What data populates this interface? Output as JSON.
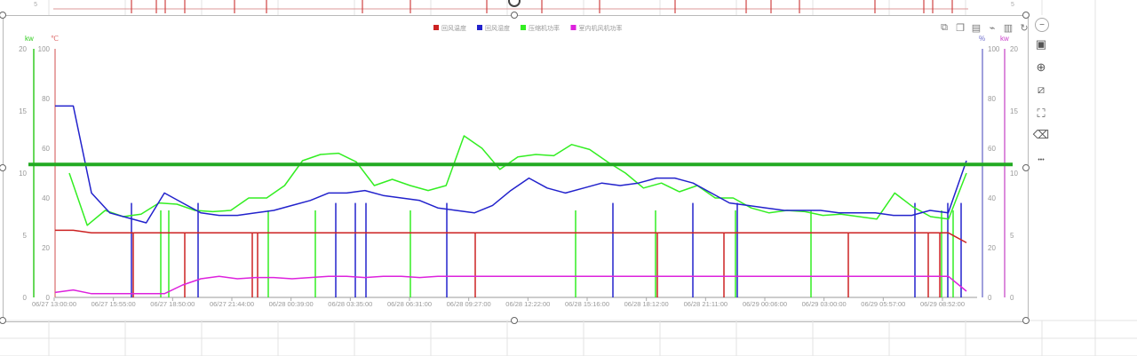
{
  "toolbar": {
    "right_icons": [
      "minus-icon",
      "chart-icon",
      "zoom-in-icon",
      "crop-icon",
      "fullscreen-icon",
      "eraser-icon",
      "more-icon"
    ],
    "more_label": "•••",
    "minus_label": "−",
    "chart_icons": [
      "copy-icon",
      "copy-alt-icon",
      "document-icon",
      "line-chart-icon",
      "bar-chart-icon",
      "refresh-icon"
    ]
  },
  "chart_data": {
    "type": "line",
    "legend_position": "top-center",
    "grid": false,
    "series": [
      {
        "name": "回风温度",
        "color": "#cc2222",
        "axis": "celsius"
      },
      {
        "name": "回风湿度",
        "color": "#2222cc",
        "axis": "percent"
      },
      {
        "name": "压缩机功率",
        "color": "#33ee22",
        "axis": "kw_left"
      },
      {
        "name": "室内机风机功率",
        "color": "#dd22dd",
        "axis": "kw_right"
      }
    ],
    "axes": {
      "kw_left": {
        "unit": "kw",
        "ticks": [
          0,
          5,
          10,
          15,
          20
        ],
        "range": [
          0,
          20
        ],
        "color": "#33cc22"
      },
      "celsius": {
        "unit": "℃",
        "ticks": [
          0,
          20,
          40,
          60,
          80,
          100
        ],
        "range": [
          0,
          100
        ],
        "color": "#dd6666"
      },
      "percent": {
        "unit": "%",
        "ticks": [
          0,
          20,
          40,
          60,
          80,
          100
        ],
        "range": [
          0,
          100
        ],
        "color": "#7070cc"
      },
      "kw_right": {
        "unit": "kw",
        "ticks": [
          0,
          5,
          10,
          15,
          20
        ],
        "range": [
          0,
          20
        ],
        "color": "#cc44cc"
      }
    },
    "x_tick_labels": [
      "06/27 13:00:00",
      "06/27 15:55:00",
      "06/27 18:50:00",
      "06/27 21:44:00",
      "06/28 00:39:00",
      "06/28 03:35:00",
      "06/28 06:31:00",
      "06/28 09:27:00",
      "06/28 12:22:00",
      "06/28 15:16:00",
      "06/28 18:12:00",
      "06/28 21:11:00",
      "06/29 00:06:00",
      "06/29 03:00:00",
      "06/29 05:57:00",
      "06/29 08:52:00"
    ],
    "reference_line": {
      "axis": "kw_left",
      "value": 10.7,
      "color": "#22aa22"
    },
    "return_temp_c": [
      27,
      27,
      26,
      26,
      26,
      26,
      26,
      26,
      26,
      26,
      26,
      26,
      26,
      26,
      26,
      26,
      26,
      26,
      26,
      26,
      26,
      26,
      26,
      26,
      26,
      26,
      26,
      26,
      26,
      26,
      26,
      26,
      26,
      26,
      26,
      26,
      26,
      26,
      26,
      26,
      26,
      26,
      26,
      26,
      26,
      26,
      26,
      26,
      26,
      26,
      22
    ],
    "return_humidity_pct": [
      77,
      77,
      42,
      34,
      32,
      30,
      42,
      38,
      34,
      33,
      33,
      34,
      35,
      37,
      39,
      42,
      42,
      43,
      41,
      40,
      39,
      36,
      35,
      34,
      37,
      43,
      48,
      44,
      42,
      44,
      46,
      45,
      46,
      48,
      48,
      46,
      42,
      38,
      37,
      36,
      35,
      35,
      35,
      34,
      34,
      34,
      33,
      33,
      35,
      34,
      55
    ],
    "compressor_kw": [
      10,
      5.8,
      7,
      6.5,
      6.7,
      7.6,
      7.5,
      7,
      6.9,
      7,
      8,
      8,
      9,
      11,
      11.5,
      11.6,
      10.9,
      9,
      9.5,
      9,
      8.6,
      9,
      13,
      12,
      10.3,
      11.3,
      11.5,
      11.4,
      12.3,
      11.9,
      10.9,
      10,
      8.8,
      9.2,
      8.5,
      9,
      8,
      8,
      7.2,
      6.8,
      7,
      6.9,
      6.6,
      6.7,
      6.5,
      6.3,
      8.4,
      7.3,
      6.5,
      6.3,
      10
    ],
    "fan_kw": [
      0.4,
      0.6,
      0.3,
      0.3,
      0.3,
      0.3,
      0.3,
      1,
      1.5,
      1.7,
      1.5,
      1.6,
      1.6,
      1.5,
      1.6,
      1.7,
      1.7,
      1.6,
      1.7,
      1.7,
      1.6,
      1.7,
      1.7,
      1.7,
      1.7,
      1.7,
      1.7,
      1.7,
      1.7,
      1.7,
      1.7,
      1.7,
      1.7,
      1.7,
      1.7,
      1.7,
      1.7,
      1.7,
      1.7,
      1.7,
      1.7,
      1.7,
      1.7,
      1.7,
      1.7,
      1.7,
      1.7,
      1.7,
      1.7,
      1.7,
      0.5
    ]
  }
}
